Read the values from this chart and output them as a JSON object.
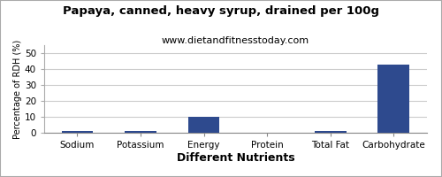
{
  "title": "Papaya, canned, heavy syrup, drained per 100g",
  "subtitle": "www.dietandfitnesstoday.com",
  "xlabel": "Different Nutrients",
  "ylabel": "Percentage of RDH (%)",
  "categories": [
    "Sodium",
    "Potassium",
    "Energy",
    "Protein",
    "Total Fat",
    "Carbohydrate"
  ],
  "values": [
    1.0,
    1.0,
    10.2,
    0.0,
    1.0,
    43.0
  ],
  "bar_color": "#2e4a8e",
  "ylim": [
    0,
    55
  ],
  "yticks": [
    0,
    10,
    20,
    30,
    40,
    50
  ],
  "background_color": "#ffffff",
  "grid_color": "#cccccc",
  "title_fontsize": 9.5,
  "subtitle_fontsize": 8,
  "xlabel_fontsize": 9,
  "ylabel_fontsize": 7,
  "tick_fontsize": 7.5,
  "border_color": "#aaaaaa"
}
